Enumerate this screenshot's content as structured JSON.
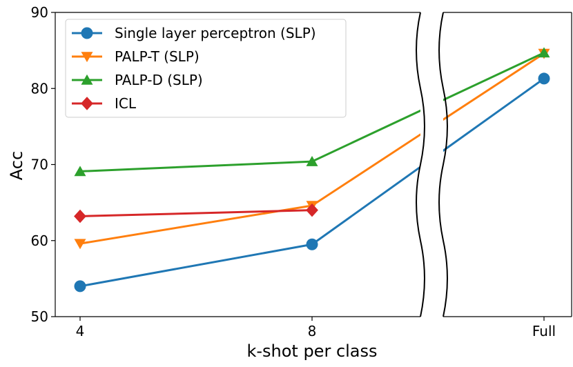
{
  "chart_data": {
    "type": "line",
    "title": "",
    "xlabel": "k-shot per class",
    "ylabel": "Acc",
    "categories": [
      "4",
      "8",
      "Full"
    ],
    "ylim": [
      50,
      90
    ],
    "yticks": [
      50,
      60,
      70,
      80,
      90
    ],
    "broken_x_axis": true,
    "grid": false,
    "legend_position": "top-left",
    "series": [
      {
        "name": "Single layer perceptron (SLP)",
        "values": [
          54.0,
          59.5,
          81.3
        ],
        "color": "#1f77b4",
        "marker": "circle"
      },
      {
        "name": "PALP-T (SLP)",
        "values": [
          59.6,
          64.6,
          84.6
        ],
        "color": "#ff7f0e",
        "marker": "triangle-down"
      },
      {
        "name": "PALP-D (SLP)",
        "values": [
          69.1,
          70.4,
          84.7
        ],
        "color": "#2ca02c",
        "marker": "triangle-up"
      },
      {
        "name": "ICL",
        "values": [
          63.2,
          64.0,
          null
        ],
        "color": "#d62728",
        "marker": "diamond"
      }
    ]
  }
}
